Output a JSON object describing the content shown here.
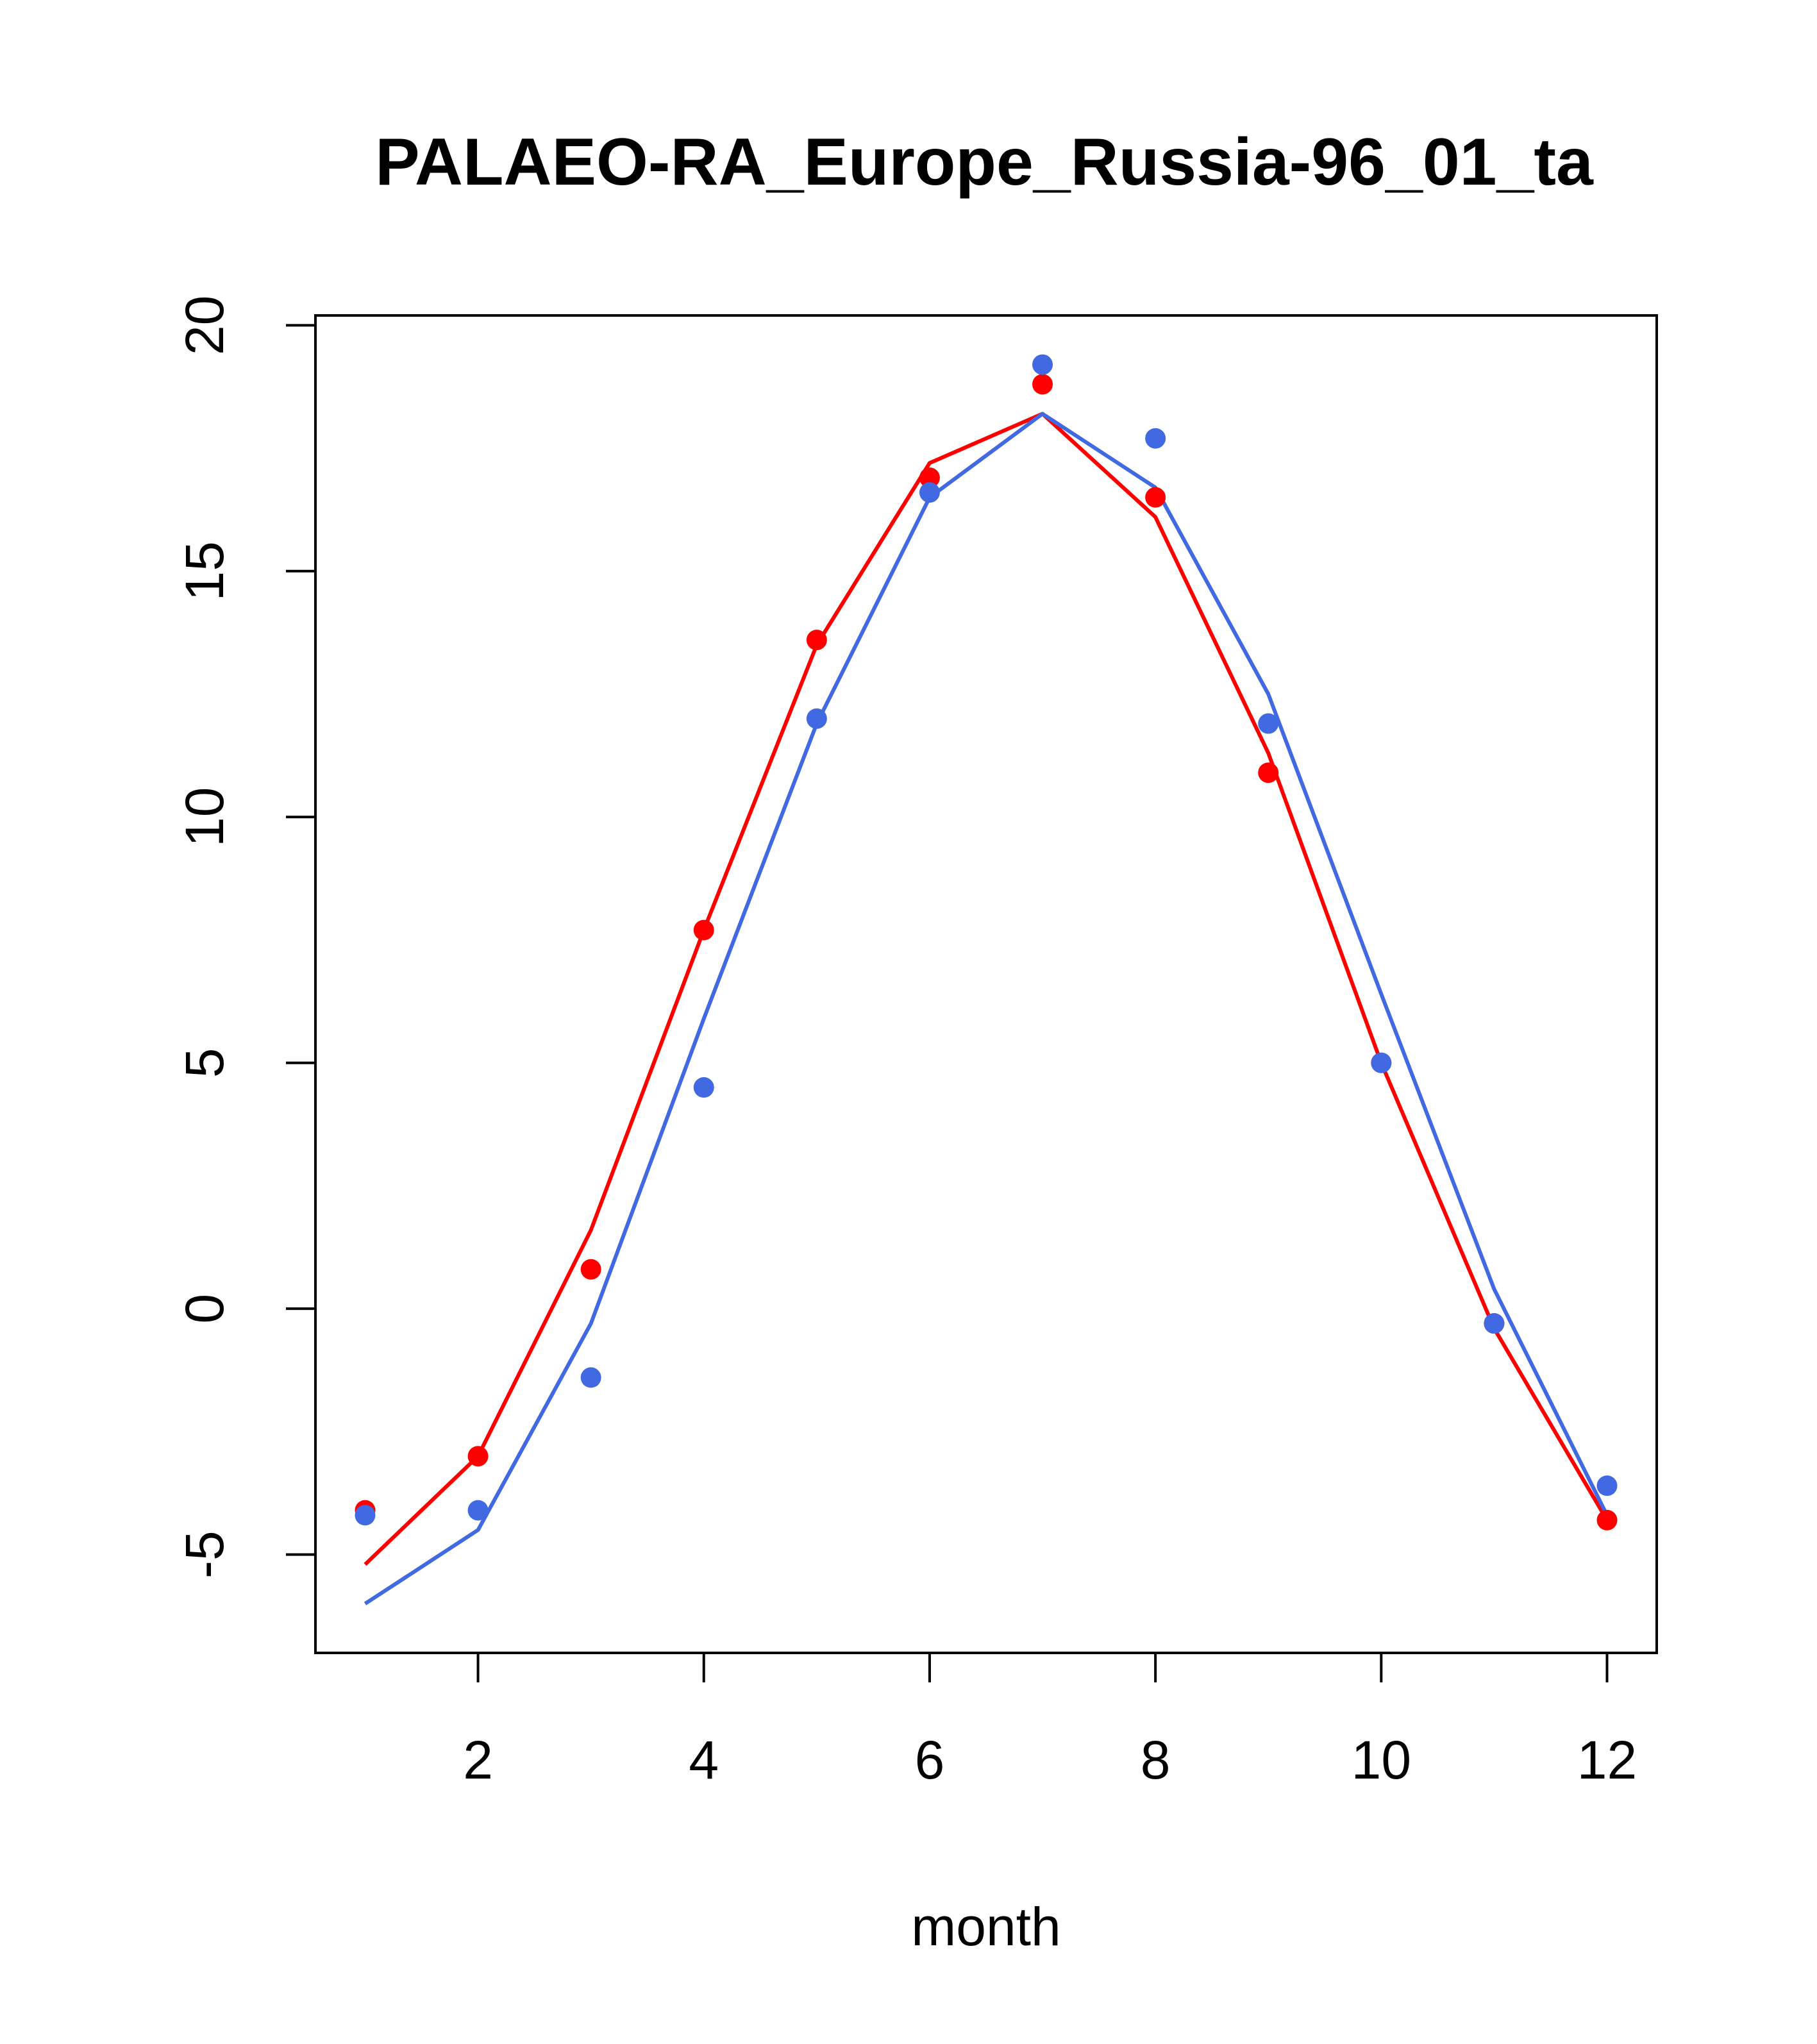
{
  "chart_data": {
    "type": "line",
    "title": "PALAEO-RA_Europe_Russia-96_01_ta",
    "xlabel": "month",
    "ylabel": "",
    "xlim": [
      0.56,
      12.44
    ],
    "ylim": [
      -7,
      20.2
    ],
    "x_ticks": [
      2,
      4,
      6,
      8,
      10,
      12
    ],
    "y_ticks": [
      -5,
      0,
      5,
      10,
      15,
      20
    ],
    "grid": false,
    "legend": "none",
    "series": [
      {
        "color": "#ff0000",
        "x": [
          1,
          2,
          3,
          4,
          5,
          6,
          7,
          8,
          9,
          10,
          11,
          12
        ],
        "line": [
          -5.2,
          -3.0,
          1.6,
          7.7,
          13.5,
          17.2,
          18.2,
          16.1,
          11.3,
          5.0,
          -0.4,
          -4.3
        ],
        "points": [
          -4.1,
          -3.0,
          0.8,
          7.7,
          13.6,
          16.9,
          18.8,
          16.5,
          10.9,
          5.0,
          -0.3,
          -4.3
        ]
      },
      {
        "color": "#4169e1",
        "x": [
          1,
          2,
          3,
          4,
          5,
          6,
          7,
          8,
          9,
          10,
          11,
          12
        ],
        "line": [
          -6.0,
          -4.5,
          -0.3,
          5.9,
          11.9,
          16.5,
          18.2,
          16.7,
          12.5,
          6.4,
          0.4,
          -4.2
        ],
        "points": [
          -4.2,
          -4.1,
          -1.4,
          4.5,
          12.0,
          16.6,
          19.2,
          17.7,
          11.9,
          5.0,
          -0.3,
          -3.6
        ]
      }
    ]
  }
}
